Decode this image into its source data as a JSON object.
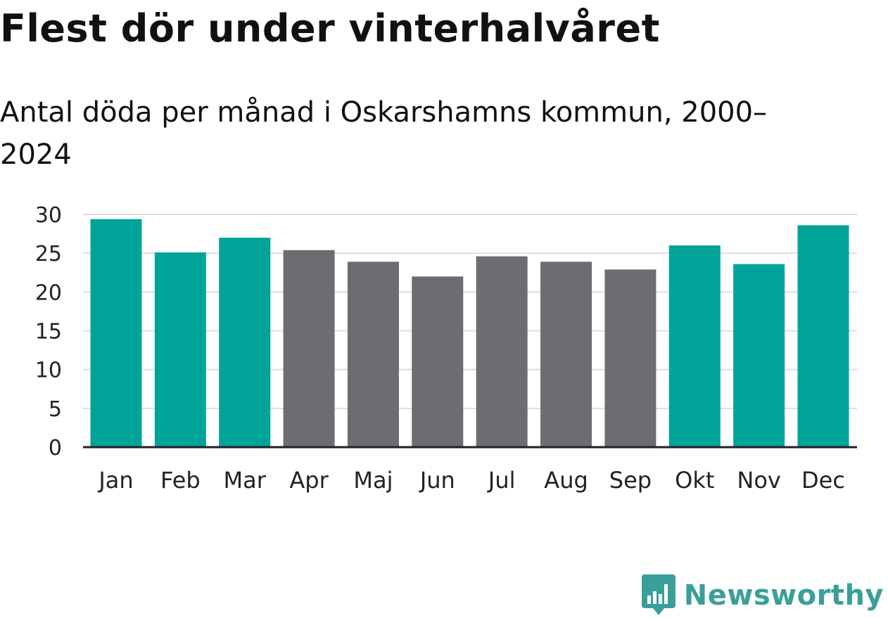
{
  "header": {
    "title": "Flest dör under vinterhalvåret",
    "subtitle": "Antal döda per månad i Oskarshamns kommun, 2000–2024"
  },
  "branding": {
    "logo_text": "Newsworthy",
    "logo_color": "#3a9f98"
  },
  "colors": {
    "winter": "#00a39a",
    "summer": "#6d6c73",
    "gridline": "#dddddd",
    "axis": "#222222",
    "tick_text": "#222222"
  },
  "chart_data": {
    "type": "bar",
    "title": "Flest dör under vinterhalvåret",
    "subtitle": "Antal döda per månad i Oskarshamns kommun, 2000–2024",
    "xlabel": "",
    "ylabel": "",
    "ylim": [
      0,
      30
    ],
    "yticks": [
      0,
      5,
      10,
      15,
      20,
      25,
      30
    ],
    "grid": true,
    "categories": [
      "Jan",
      "Feb",
      "Mar",
      "Apr",
      "Maj",
      "Jun",
      "Jul",
      "Aug",
      "Sep",
      "Okt",
      "Nov",
      "Dec"
    ],
    "values": [
      29.4,
      25.1,
      27.0,
      25.4,
      23.9,
      22.0,
      24.6,
      23.9,
      22.9,
      26.0,
      23.6,
      28.6
    ],
    "highlight": [
      true,
      true,
      true,
      false,
      false,
      false,
      false,
      false,
      false,
      true,
      true,
      true
    ]
  }
}
